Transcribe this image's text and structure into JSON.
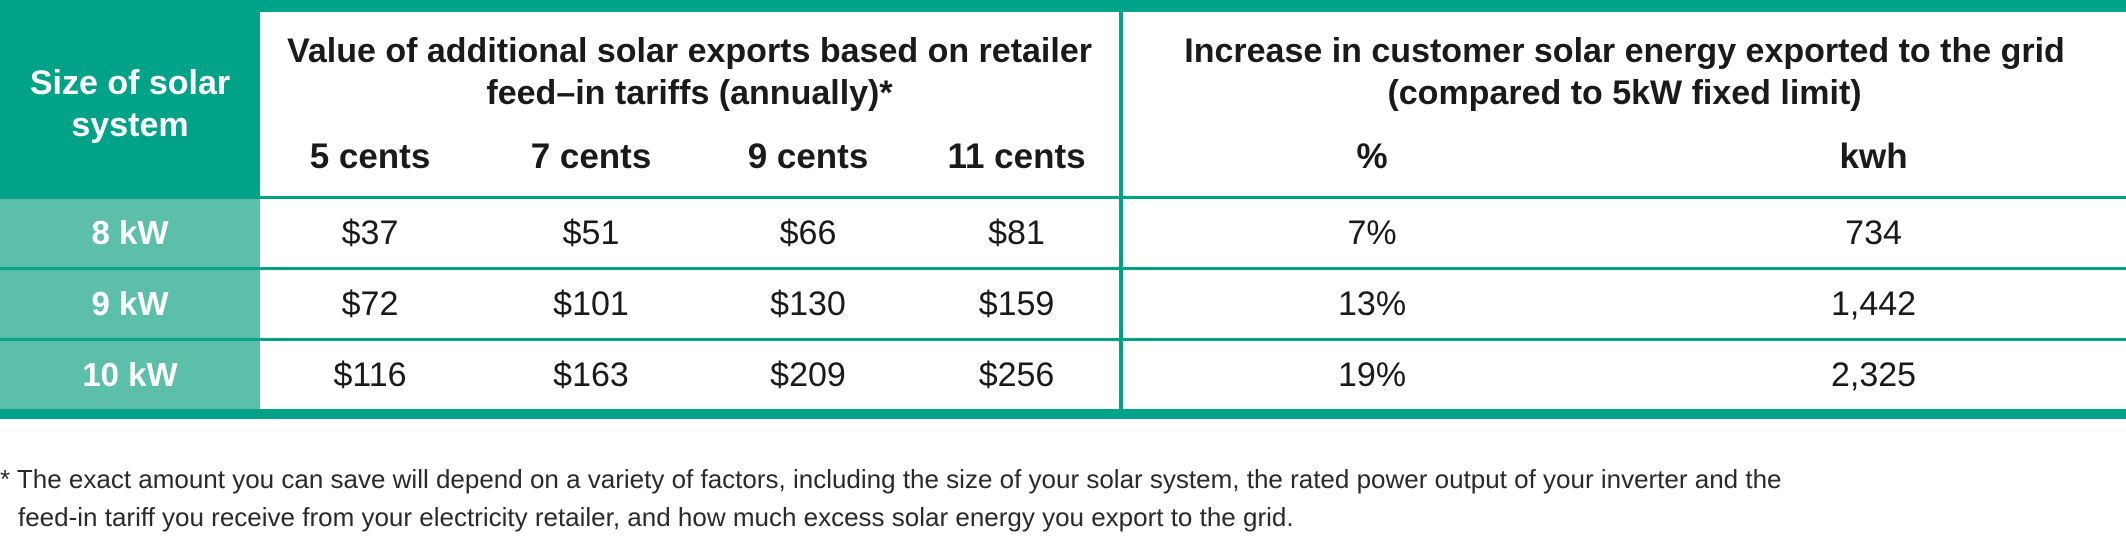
{
  "table": {
    "size_header": "Size of solar system",
    "group1_header": "Value of additional solar exports based on retailer feed–in tariffs (annually)*",
    "group2_header": "Increase in customer solar energy exported to the grid (compared to 5kW fixed limit)",
    "subheaders": [
      "5 cents",
      "7 cents",
      "9 cents",
      "11 cents",
      "%",
      "kwh"
    ],
    "rows": [
      {
        "size": "8 kW",
        "values": [
          "$37",
          "$51",
          "$66",
          "$81",
          "7%",
          "734"
        ]
      },
      {
        "size": "9 kW",
        "values": [
          "$72",
          "$101",
          "$130",
          "$159",
          "13%",
          "1,442"
        ]
      },
      {
        "size": "10 kW",
        "values": [
          "$116",
          "$163",
          "$209",
          "$256",
          "19%",
          "2,325"
        ]
      }
    ]
  },
  "footnote": {
    "line1": "* The exact amount you can save will depend on a variety of factors, including the size of your solar system, the rated power output of your inverter and the",
    "line2": "feed-in tariff you receive from your electricity retailer, and how much excess solar energy you export to the grid."
  },
  "colors": {
    "accent": "#00a388",
    "row_label_bg": "#5bbfa9"
  }
}
